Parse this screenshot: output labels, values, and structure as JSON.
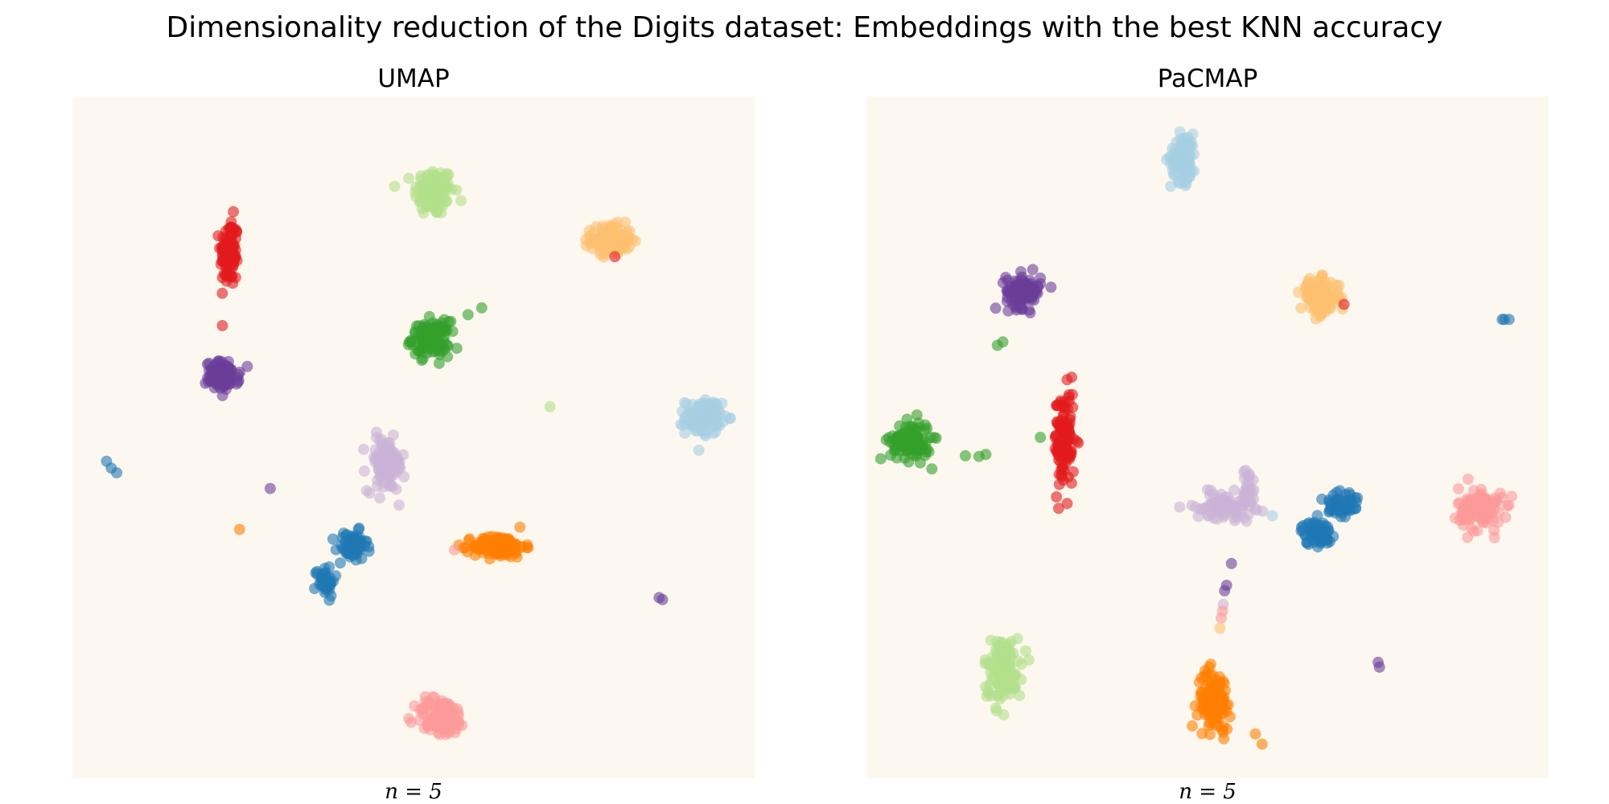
{
  "chart_data": {
    "type": "scatter",
    "title": "Dimensionality reduction of the Digits dataset: Embeddings with the best KNN accuracy",
    "legend": "none",
    "axes_visible": false,
    "grid": false,
    "plot_background": "#fdf8ef",
    "point_opacity": 0.6,
    "palette": {
      "blue": "#1f78b4",
      "light_blue": "#a6cee3",
      "green": "#33a02c",
      "light_green": "#b2df8a",
      "red": "#e31a1c",
      "pink": "#fb9a99",
      "orange": "#ff7f00",
      "light_orange": "#fdbf6f",
      "purple": "#6a3d9a",
      "lavender": "#cab2d6"
    },
    "panels": [
      {
        "title": "UMAP",
        "xlabel": "n = 5",
        "xlim": [
          0,
          100
        ],
        "ylim": [
          0,
          100
        ],
        "clusters": [
          {
            "color": "light_green",
            "x": 53,
            "y": 86,
            "sx": 2.6,
            "sy": 3.2,
            "n": 120
          },
          {
            "color": "red",
            "x": 23,
            "y": 77,
            "sx": 1.2,
            "sy": 4.6,
            "n": 110
          },
          {
            "color": "light_orange",
            "x": 79,
            "y": 79,
            "sx": 2.7,
            "sy": 2.0,
            "n": 110
          },
          {
            "color": "green",
            "x": 52.5,
            "y": 64.5,
            "sx": 2.5,
            "sy": 2.3,
            "n": 120
          },
          {
            "color": "purple",
            "x": 22,
            "y": 59,
            "sx": 2.2,
            "sy": 1.9,
            "n": 100
          },
          {
            "color": "light_blue",
            "x": 92.5,
            "y": 53,
            "sx": 2.4,
            "sy": 2.3,
            "n": 120
          },
          {
            "color": "lavender",
            "x": 46,
            "y": 46,
            "sx": 2.5,
            "sy": 3.6,
            "n": 100
          },
          {
            "color": "blue",
            "x": 41,
            "y": 34,
            "sx": 2.0,
            "sy": 2.0,
            "n": 60
          },
          {
            "color": "blue",
            "x": 37,
            "y": 29,
            "sx": 1.3,
            "sy": 2.0,
            "n": 40
          },
          {
            "color": "orange",
            "x": 62.5,
            "y": 34,
            "sx": 3.4,
            "sy": 1.5,
            "n": 120
          },
          {
            "color": "pink",
            "x": 54,
            "y": 9,
            "sx": 3.5,
            "sy": 2.6,
            "n": 100
          }
        ],
        "outliers": [
          {
            "color": "blue",
            "x": 5.7,
            "y": 45.5
          },
          {
            "color": "blue",
            "x": 5,
            "y": 46.5
          },
          {
            "color": "blue",
            "x": 6.5,
            "y": 44.8
          },
          {
            "color": "purple",
            "x": 29,
            "y": 42.5
          },
          {
            "color": "orange",
            "x": 24.5,
            "y": 36.5
          },
          {
            "color": "light_green",
            "x": 70,
            "y": 54.5
          },
          {
            "color": "green",
            "x": 60,
            "y": 69
          },
          {
            "color": "green",
            "x": 58,
            "y": 68
          },
          {
            "color": "purple",
            "x": 86,
            "y": 26.5
          },
          {
            "color": "purple",
            "x": 86.5,
            "y": 26.2
          },
          {
            "color": "red",
            "x": 79.5,
            "y": 76.5
          },
          {
            "color": "pink",
            "x": 56,
            "y": 33.5
          },
          {
            "color": "lavender",
            "x": 47,
            "y": 46.5
          }
        ]
      },
      {
        "title": "PaCMAP",
        "xlabel": "n = 5",
        "xlim": [
          0,
          100
        ],
        "ylim": [
          0,
          100
        ],
        "clusters": [
          {
            "color": "light_blue",
            "x": 46.5,
            "y": 91,
            "sx": 1.7,
            "sy": 3.2,
            "n": 110
          },
          {
            "color": "purple",
            "x": 23,
            "y": 71.5,
            "sx": 2.3,
            "sy": 2.2,
            "n": 100
          },
          {
            "color": "light_orange",
            "x": 66.5,
            "y": 70.5,
            "sx": 2.6,
            "sy": 2.4,
            "n": 110
          },
          {
            "color": "green",
            "x": 6.5,
            "y": 49.5,
            "sx": 2.7,
            "sy": 2.6,
            "n": 110
          },
          {
            "color": "red",
            "x": 29,
            "y": 49.5,
            "sx": 1.3,
            "sy": 6.8,
            "n": 120
          },
          {
            "color": "lavender",
            "x": 52.5,
            "y": 40,
            "sx": 4.0,
            "sy": 1.7,
            "n": 90
          },
          {
            "color": "lavender",
            "x": 56,
            "y": 43,
            "sx": 0.8,
            "sy": 2.3,
            "n": 20
          },
          {
            "color": "blue",
            "x": 66,
            "y": 36,
            "sx": 2.0,
            "sy": 1.6,
            "n": 60
          },
          {
            "color": "blue",
            "x": 69.5,
            "y": 40,
            "sx": 2.5,
            "sy": 2.6,
            "n": 50
          },
          {
            "color": "pink",
            "x": 90,
            "y": 39.5,
            "sx": 2.9,
            "sy": 2.9,
            "n": 110
          },
          {
            "color": "light_green",
            "x": 20,
            "y": 16,
            "sx": 2.5,
            "sy": 4.2,
            "n": 120
          },
          {
            "color": "orange",
            "x": 51,
            "y": 11.5,
            "sx": 2.2,
            "sy": 4.0,
            "n": 120
          }
        ],
        "outliers": [
          {
            "color": "blue",
            "x": 93.5,
            "y": 67.3
          },
          {
            "color": "blue",
            "x": 94.2,
            "y": 67.3
          },
          {
            "color": "blue",
            "x": 93.2,
            "y": 67.3
          },
          {
            "color": "green",
            "x": 20,
            "y": 64
          },
          {
            "color": "green",
            "x": 19.2,
            "y": 63.5
          },
          {
            "color": "green",
            "x": 14.5,
            "y": 47.3
          },
          {
            "color": "green",
            "x": 16.5,
            "y": 47.2
          },
          {
            "color": "green",
            "x": 17.5,
            "y": 47.5
          },
          {
            "color": "green",
            "x": 25.5,
            "y": 50
          },
          {
            "color": "purple",
            "x": 53.5,
            "y": 31.5
          },
          {
            "color": "purple",
            "x": 52.8,
            "y": 28.3
          },
          {
            "color": "purple",
            "x": 52.5,
            "y": 27.5
          },
          {
            "color": "lavender",
            "x": 52.3,
            "y": 25.5
          },
          {
            "color": "pink",
            "x": 52.2,
            "y": 24.5
          },
          {
            "color": "pink",
            "x": 52,
            "y": 23.5
          },
          {
            "color": "light_orange",
            "x": 51.8,
            "y": 22
          },
          {
            "color": "orange",
            "x": 57,
            "y": 6.5
          },
          {
            "color": "orange",
            "x": 58,
            "y": 5
          },
          {
            "color": "purple",
            "x": 75,
            "y": 17
          },
          {
            "color": "purple",
            "x": 75.2,
            "y": 16.3
          },
          {
            "color": "light_blue",
            "x": 59.5,
            "y": 38.5
          },
          {
            "color": "red",
            "x": 70,
            "y": 69.5
          }
        ]
      }
    ]
  }
}
